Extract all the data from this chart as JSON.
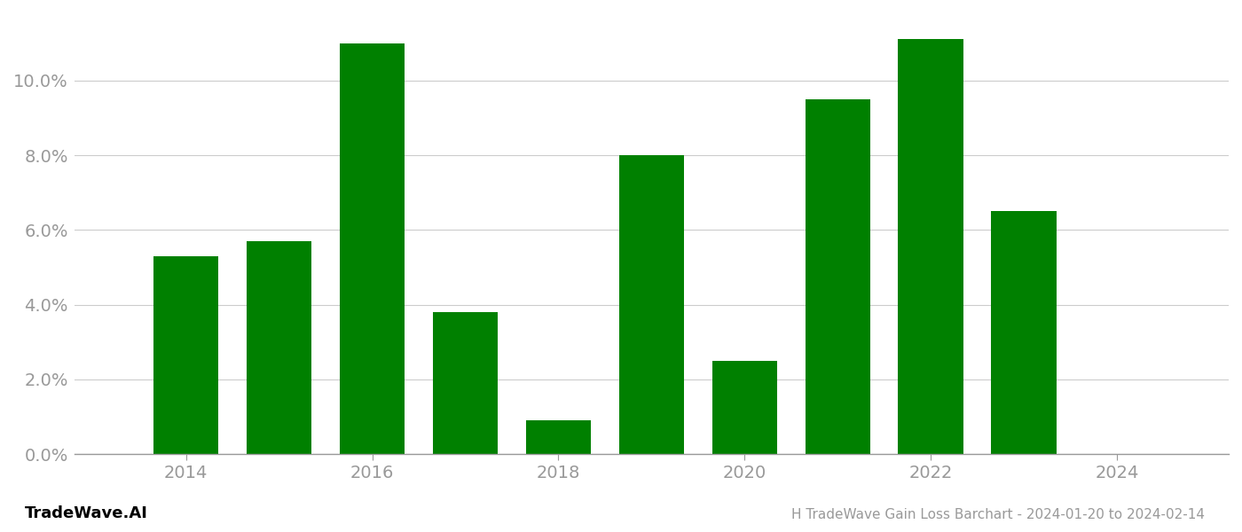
{
  "years": [
    2014,
    2015,
    2016,
    2017,
    2018,
    2019,
    2020,
    2021,
    2022,
    2023
  ],
  "values": [
    0.053,
    0.057,
    0.11,
    0.038,
    0.009,
    0.08,
    0.025,
    0.095,
    0.111,
    0.065
  ],
  "bar_color": "#008000",
  "background_color": "#ffffff",
  "title": "H TradeWave Gain Loss Barchart - 2024-01-20 to 2024-02-14",
  "watermark": "TradeWave.AI",
  "ylim": [
    0,
    0.118
  ],
  "yticks": [
    0.0,
    0.02,
    0.04,
    0.06,
    0.08,
    0.1
  ],
  "xlim": [
    2012.8,
    2025.2
  ],
  "xticks": [
    2014,
    2016,
    2018,
    2020,
    2022,
    2024
  ],
  "grid_color": "#cccccc",
  "tick_label_color": "#999999",
  "title_color": "#999999",
  "watermark_color": "#000000",
  "bar_width": 0.7
}
